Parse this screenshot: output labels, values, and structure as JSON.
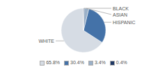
{
  "chart_data": {
    "type": "pie",
    "categories": [
      "WHITE",
      "HISPANIC",
      "ASIAN",
      "BLACK"
    ],
    "values": [
      65.8,
      30.4,
      3.4,
      0.4
    ],
    "value_labels": [
      "65.8%",
      "30.4%",
      "3.4%",
      "0.4%"
    ],
    "colors": [
      "#d6dce4",
      "#4472a8",
      "#9ab0c8",
      "#1f3864"
    ],
    "legend": "bottom"
  }
}
